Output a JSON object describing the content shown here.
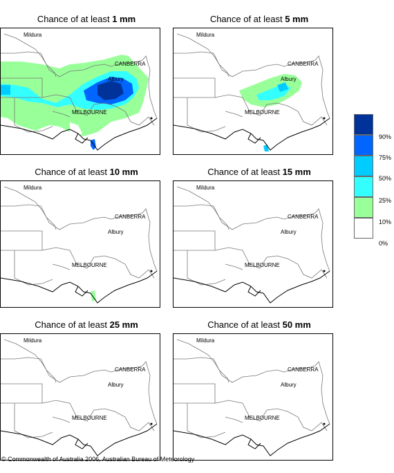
{
  "panels": [
    {
      "title_prefix": "Chance of at least ",
      "title_value": "1 mm"
    },
    {
      "title_prefix": "Chance of at least ",
      "title_value": "5 mm"
    },
    {
      "title_prefix": "Chance of at least ",
      "title_value": "10 mm"
    },
    {
      "title_prefix": "Chance of at least ",
      "title_value": "15 mm"
    },
    {
      "title_prefix": "Chance of at least ",
      "title_value": "25 mm"
    },
    {
      "title_prefix": "Chance of at least ",
      "title_value": "50 mm"
    }
  ],
  "places": {
    "mildura": "Mildura",
    "canberra": "CANBERRA",
    "albury": "Albury",
    "melbourne": "MELBOURNE"
  },
  "legend": {
    "labels": [
      "90%",
      "75%",
      "50%",
      "25%",
      "10%",
      "0%"
    ],
    "colors": [
      "#003399",
      "#0066ff",
      "#00ccff",
      "#33ffff",
      "#99ff99",
      "#ffffff"
    ]
  },
  "copyright": "© Commonwealth of Australia 2006, Australian Bureau of Meteorology"
}
